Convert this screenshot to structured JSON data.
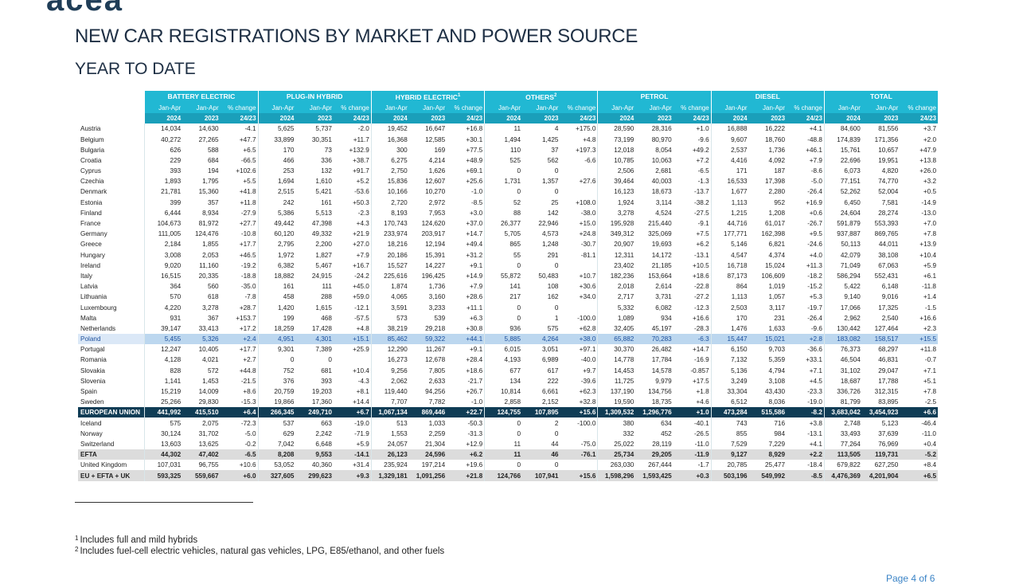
{
  "header": {
    "logo_fragment": "acea",
    "title": "NEW CAR REGISTRATIONS BY MARKET AND POWER SOURCE",
    "subtitle": "YEAR TO DATE"
  },
  "table": {
    "groups": [
      {
        "label": "BATTERY ELECTRIC",
        "sup": ""
      },
      {
        "label": "PLUG-IN HYBRID",
        "sup": ""
      },
      {
        "label": "HYBRID ELECTRIC",
        "sup": "1"
      },
      {
        "label": "OTHERS",
        "sup": "2"
      },
      {
        "label": "PETROL",
        "sup": ""
      },
      {
        "label": "DIESEL",
        "sup": ""
      },
      {
        "label": "TOTAL",
        "sup": ""
      }
    ],
    "col_headers": {
      "period": "Jan-Apr",
      "change": "% change",
      "year_a": "2024",
      "year_b": "2023",
      "year_change": "24/23"
    },
    "rows": [
      {
        "country": "Austria",
        "values": [
          "14,034",
          "14,630",
          "-4.1",
          "5,625",
          "5,737",
          "-2.0",
          "19,452",
          "16,647",
          "+16.8",
          "11",
          "4",
          "+175.0",
          "28,590",
          "28,316",
          "+1.0",
          "16,888",
          "16,222",
          "+4.1",
          "84,600",
          "81,556",
          "+3.7"
        ]
      },
      {
        "country": "Belgium",
        "values": [
          "40,272",
          "27,265",
          "+47.7",
          "33,899",
          "30,351",
          "+11.7",
          "16,368",
          "12,585",
          "+30.1",
          "1,494",
          "1,425",
          "+4.8",
          "73,199",
          "80,970",
          "-9.6",
          "9,607",
          "18,760",
          "-48.8",
          "174,839",
          "171,356",
          "+2.0"
        ]
      },
      {
        "country": "Bulgaria",
        "values": [
          "626",
          "588",
          "+6.5",
          "170",
          "73",
          "+132.9",
          "300",
          "169",
          "+77.5",
          "110",
          "37",
          "+197.3",
          "12,018",
          "8,054",
          "+49.2",
          "2,537",
          "1,736",
          "+46.1",
          "15,761",
          "10,657",
          "+47.9"
        ]
      },
      {
        "country": "Croatia",
        "values": [
          "229",
          "684",
          "-66.5",
          "466",
          "336",
          "+38.7",
          "6,275",
          "4,214",
          "+48.9",
          "525",
          "562",
          "-6.6",
          "10,785",
          "10,063",
          "+7.2",
          "4,416",
          "4,092",
          "+7.9",
          "22,696",
          "19,951",
          "+13.8"
        ]
      },
      {
        "country": "Cyprus",
        "values": [
          "393",
          "194",
          "+102.6",
          "253",
          "132",
          "+91.7",
          "2,750",
          "1,626",
          "+69.1",
          "0",
          "0",
          "",
          "2,506",
          "2,681",
          "-6.5",
          "171",
          "187",
          "-8.6",
          "6,073",
          "4,820",
          "+26.0"
        ]
      },
      {
        "country": "Czechia",
        "values": [
          "1,893",
          "1,795",
          "+5.5",
          "1,694",
          "1,610",
          "+5.2",
          "15,836",
          "12,607",
          "+25.6",
          "1,731",
          "1,357",
          "+27.6",
          "39,464",
          "40,003",
          "-1.3",
          "16,533",
          "17,398",
          "-5.0",
          "77,151",
          "74,770",
          "+3.2"
        ]
      },
      {
        "country": "Denmark",
        "values": [
          "21,781",
          "15,360",
          "+41.8",
          "2,515",
          "5,421",
          "-53.6",
          "10,166",
          "10,270",
          "-1.0",
          "0",
          "0",
          "",
          "16,123",
          "18,673",
          "-13.7",
          "1,677",
          "2,280",
          "-26.4",
          "52,262",
          "52,004",
          "+0.5"
        ]
      },
      {
        "country": "Estonia",
        "values": [
          "399",
          "357",
          "+11.8",
          "242",
          "161",
          "+50.3",
          "2,720",
          "2,972",
          "-8.5",
          "52",
          "25",
          "+108.0",
          "1,924",
          "3,114",
          "-38.2",
          "1,113",
          "952",
          "+16.9",
          "6,450",
          "7,581",
          "-14.9"
        ]
      },
      {
        "country": "Finland",
        "values": [
          "6,444",
          "8,934",
          "-27.9",
          "5,386",
          "5,513",
          "-2.3",
          "8,193",
          "7,953",
          "+3.0",
          "88",
          "142",
          "-38.0",
          "3,278",
          "4,524",
          "-27.5",
          "1,215",
          "1,208",
          "+0.6",
          "24,604",
          "28,274",
          "-13.0"
        ]
      },
      {
        "country": "France",
        "values": [
          "104,673",
          "81,972",
          "+27.7",
          "49,442",
          "47,398",
          "+4.3",
          "170,743",
          "124,620",
          "+37.0",
          "26,377",
          "22,946",
          "+15.0",
          "195,928",
          "215,440",
          "-9.1",
          "44,716",
          "61,017",
          "-26.7",
          "591,879",
          "553,393",
          "+7.0"
        ]
      },
      {
        "country": "Germany",
        "values": [
          "111,005",
          "124,476",
          "-10.8",
          "60,120",
          "49,332",
          "+21.9",
          "233,974",
          "203,917",
          "+14.7",
          "5,705",
          "4,573",
          "+24.8",
          "349,312",
          "325,069",
          "+7.5",
          "177,771",
          "162,398",
          "+9.5",
          "937,887",
          "869,765",
          "+7.8"
        ]
      },
      {
        "country": "Greece",
        "values": [
          "2,184",
          "1,855",
          "+17.7",
          "2,795",
          "2,200",
          "+27.0",
          "18,216",
          "12,194",
          "+49.4",
          "865",
          "1,248",
          "-30.7",
          "20,907",
          "19,693",
          "+6.2",
          "5,146",
          "6,821",
          "-24.6",
          "50,113",
          "44,011",
          "+13.9"
        ]
      },
      {
        "country": "Hungary",
        "values": [
          "3,008",
          "2,053",
          "+46.5",
          "1,972",
          "1,827",
          "+7.9",
          "20,186",
          "15,391",
          "+31.2",
          "55",
          "291",
          "-81.1",
          "12,311",
          "14,172",
          "-13.1",
          "4,547",
          "4,374",
          "+4.0",
          "42,079",
          "38,108",
          "+10.4"
        ]
      },
      {
        "country": "Ireland",
        "values": [
          "9,020",
          "11,160",
          "-19.2",
          "6,382",
          "5,467",
          "+16.7",
          "15,527",
          "14,227",
          "+9.1",
          "0",
          "0",
          "",
          "23,402",
          "21,185",
          "+10.5",
          "16,718",
          "15,024",
          "+11.3",
          "71,049",
          "67,063",
          "+5.9"
        ]
      },
      {
        "country": "Italy",
        "values": [
          "16,515",
          "20,335",
          "-18.8",
          "18,882",
          "24,915",
          "-24.2",
          "225,616",
          "196,425",
          "+14.9",
          "55,872",
          "50,483",
          "+10.7",
          "182,236",
          "153,664",
          "+18.6",
          "87,173",
          "106,609",
          "-18.2",
          "586,294",
          "552,431",
          "+6.1"
        ]
      },
      {
        "country": "Latvia",
        "values": [
          "364",
          "560",
          "-35.0",
          "161",
          "111",
          "+45.0",
          "1,874",
          "1,736",
          "+7.9",
          "141",
          "108",
          "+30.6",
          "2,018",
          "2,614",
          "-22.8",
          "864",
          "1,019",
          "-15.2",
          "5,422",
          "6,148",
          "-11.8"
        ]
      },
      {
        "country": "Lithuania",
        "values": [
          "570",
          "618",
          "-7.8",
          "458",
          "288",
          "+59.0",
          "4,065",
          "3,160",
          "+28.6",
          "217",
          "162",
          "+34.0",
          "2,717",
          "3,731",
          "-27.2",
          "1,113",
          "1,057",
          "+5.3",
          "9,140",
          "9,016",
          "+1.4"
        ]
      },
      {
        "country": "Luxembourg",
        "values": [
          "4,220",
          "3,278",
          "+28.7",
          "1,420",
          "1,615",
          "-12.1",
          "3,591",
          "3,233",
          "+11.1",
          "0",
          "0",
          "",
          "5,332",
          "6,082",
          "-12.3",
          "2,503",
          "3,117",
          "-19.7",
          "17,066",
          "17,325",
          "-1.5"
        ]
      },
      {
        "country": "Malta",
        "values": [
          "931",
          "367",
          "+153.7",
          "199",
          "468",
          "-57.5",
          "573",
          "539",
          "+6.3",
          "0",
          "1",
          "-100.0",
          "1,089",
          "934",
          "+16.6",
          "170",
          "231",
          "-26.4",
          "2,962",
          "2,540",
          "+16.6"
        ]
      },
      {
        "country": "Netherlands",
        "values": [
          "39,147",
          "33,413",
          "+17.2",
          "18,259",
          "17,428",
          "+4.8",
          "38,219",
          "29,218",
          "+30.8",
          "936",
          "575",
          "+62.8",
          "32,405",
          "45,197",
          "-28.3",
          "1,476",
          "1,633",
          "-9.6",
          "130,442",
          "127,464",
          "+2.3"
        ]
      },
      {
        "country": "Poland",
        "values": [
          "5,455",
          "5,326",
          "+2.4",
          "4,951",
          "4,301",
          "+15.1",
          "85,462",
          "59,322",
          "+44.1",
          "5,885",
          "4,264",
          "+38.0",
          "65,882",
          "70,283",
          "-6.3",
          "15,447",
          "15,021",
          "+2.8",
          "183,082",
          "158,517",
          "+15.5"
        ]
      },
      {
        "country": "Portugal",
        "values": [
          "12,247",
          "10,405",
          "+17.7",
          "9,301",
          "7,389",
          "+25.9",
          "12,290",
          "11,267",
          "+9.1",
          "6,015",
          "3,051",
          "+97.1",
          "30,370",
          "26,482",
          "+14.7",
          "6,150",
          "9,703",
          "-36.6",
          "76,373",
          "68,297",
          "+11.8"
        ]
      },
      {
        "country": "Romania",
        "values": [
          "4,128",
          "4,021",
          "+2.7",
          "0",
          "0",
          "",
          "16,273",
          "12,678",
          "+28.4",
          "4,193",
          "6,989",
          "-40.0",
          "14,778",
          "17,784",
          "-16.9",
          "7,132",
          "5,359",
          "+33.1",
          "46,504",
          "46,831",
          "-0.7"
        ]
      },
      {
        "country": "Slovakia",
        "values": [
          "828",
          "572",
          "+44.8",
          "752",
          "681",
          "+10.4",
          "9,256",
          "7,805",
          "+18.6",
          "677",
          "617",
          "+9.7",
          "14,453",
          "14,578",
          "-0.857",
          "5,136",
          "4,794",
          "+7.1",
          "31,102",
          "29,047",
          "+7.1"
        ]
      },
      {
        "country": "Slovenia",
        "values": [
          "1,141",
          "1,453",
          "-21.5",
          "376",
          "393",
          "-4.3",
          "2,062",
          "2,633",
          "-21.7",
          "134",
          "222",
          "-39.6",
          "11,725",
          "9,979",
          "+17.5",
          "3,249",
          "3,108",
          "+4.5",
          "18,687",
          "17,788",
          "+5.1"
        ]
      },
      {
        "country": "Spain",
        "values": [
          "15,219",
          "14,009",
          "+8.6",
          "20,759",
          "19,203",
          "+8.1",
          "119,440",
          "94,256",
          "+26.7",
          "10,814",
          "6,661",
          "+62.3",
          "137,190",
          "134,756",
          "+1.8",
          "33,304",
          "43,430",
          "-23.3",
          "336,726",
          "312,315",
          "+7.8"
        ]
      },
      {
        "country": "Sweden",
        "values": [
          "25,266",
          "29,830",
          "-15.3",
          "19,866",
          "17,360",
          "+14.4",
          "7,707",
          "7,782",
          "-1.0",
          "2,858",
          "2,152",
          "+32.8",
          "19,590",
          "18,735",
          "+4.6",
          "6,512",
          "8,036",
          "-19.0",
          "81,799",
          "83,895",
          "-2.5"
        ]
      },
      {
        "country": "EUROPEAN UNION",
        "values": [
          "441,992",
          "415,510",
          "+6.4",
          "266,345",
          "249,710",
          "+6.7",
          "1,067,134",
          "869,446",
          "+22.7",
          "124,755",
          "107,895",
          "+15.6",
          "1,309,532",
          "1,296,776",
          "+1.0",
          "473,284",
          "515,586",
          "-8.2",
          "3,683,042",
          "3,454,923",
          "+6.6"
        ]
      },
      {
        "country": "Iceland",
        "values": [
          "575",
          "2,075",
          "-72.3",
          "537",
          "663",
          "-19.0",
          "513",
          "1,033",
          "-50.3",
          "0",
          "2",
          "-100.0",
          "380",
          "634",
          "-40.1",
          "743",
          "716",
          "+3.8",
          "2,748",
          "5,123",
          "-46.4"
        ]
      },
      {
        "country": "Norway",
        "values": [
          "30,124",
          "31,702",
          "-5.0",
          "629",
          "2,242",
          "-71.9",
          "1,553",
          "2,259",
          "-31.3",
          "0",
          "0",
          "",
          "332",
          "452",
          "-26.5",
          "855",
          "984",
          "-13.1",
          "33,493",
          "37,639",
          "-11.0"
        ]
      },
      {
        "country": "Switzerland",
        "values": [
          "13,603",
          "13,625",
          "-0.2",
          "7,042",
          "6,648",
          "+5.9",
          "24,057",
          "21,304",
          "+12.9",
          "11",
          "44",
          "-75.0",
          "25,022",
          "28,119",
          "-11.0",
          "7,529",
          "7,229",
          "+4.1",
          "77,264",
          "76,969",
          "+0.4"
        ]
      },
      {
        "country": "EFTA",
        "values": [
          "44,302",
          "47,402",
          "-6.5",
          "8,208",
          "9,553",
          "-14.1",
          "26,123",
          "24,596",
          "+6.2",
          "11",
          "46",
          "-76.1",
          "25,734",
          "29,205",
          "-11.9",
          "9,127",
          "8,929",
          "+2.2",
          "113,505",
          "119,731",
          "-5.2"
        ]
      },
      {
        "country": "United Kingdom",
        "values": [
          "107,031",
          "96,755",
          "+10.6",
          "53,052",
          "40,360",
          "+31.4",
          "235,924",
          "197,214",
          "+19.6",
          "0",
          "0",
          "",
          "263,030",
          "267,444",
          "-1.7",
          "20,785",
          "25,477",
          "-18.4",
          "679,822",
          "627,250",
          "+8.4"
        ]
      },
      {
        "country": "EU + EFTA + UK",
        "values": [
          "593,325",
          "559,667",
          "+6.0",
          "327,605",
          "299,623",
          "+9.3",
          "1,329,181",
          "1,091,256",
          "+21.8",
          "124,766",
          "107,941",
          "+15.6",
          "1,598,296",
          "1,593,425",
          "+0.3",
          "503,196",
          "549,992",
          "-8.5",
          "4,476,369",
          "4,201,904",
          "+6.5"
        ]
      }
    ]
  },
  "footnotes": [
    {
      "marker": "1",
      "text": "Includes full and mild hybrids"
    },
    {
      "marker": "2",
      "text": "Includes fuel-cell electric vehicles, natural gas vehicles, LPG, E85/ethanol, and other fuels"
    }
  ],
  "page": {
    "label": "Page 4 of 6"
  }
}
